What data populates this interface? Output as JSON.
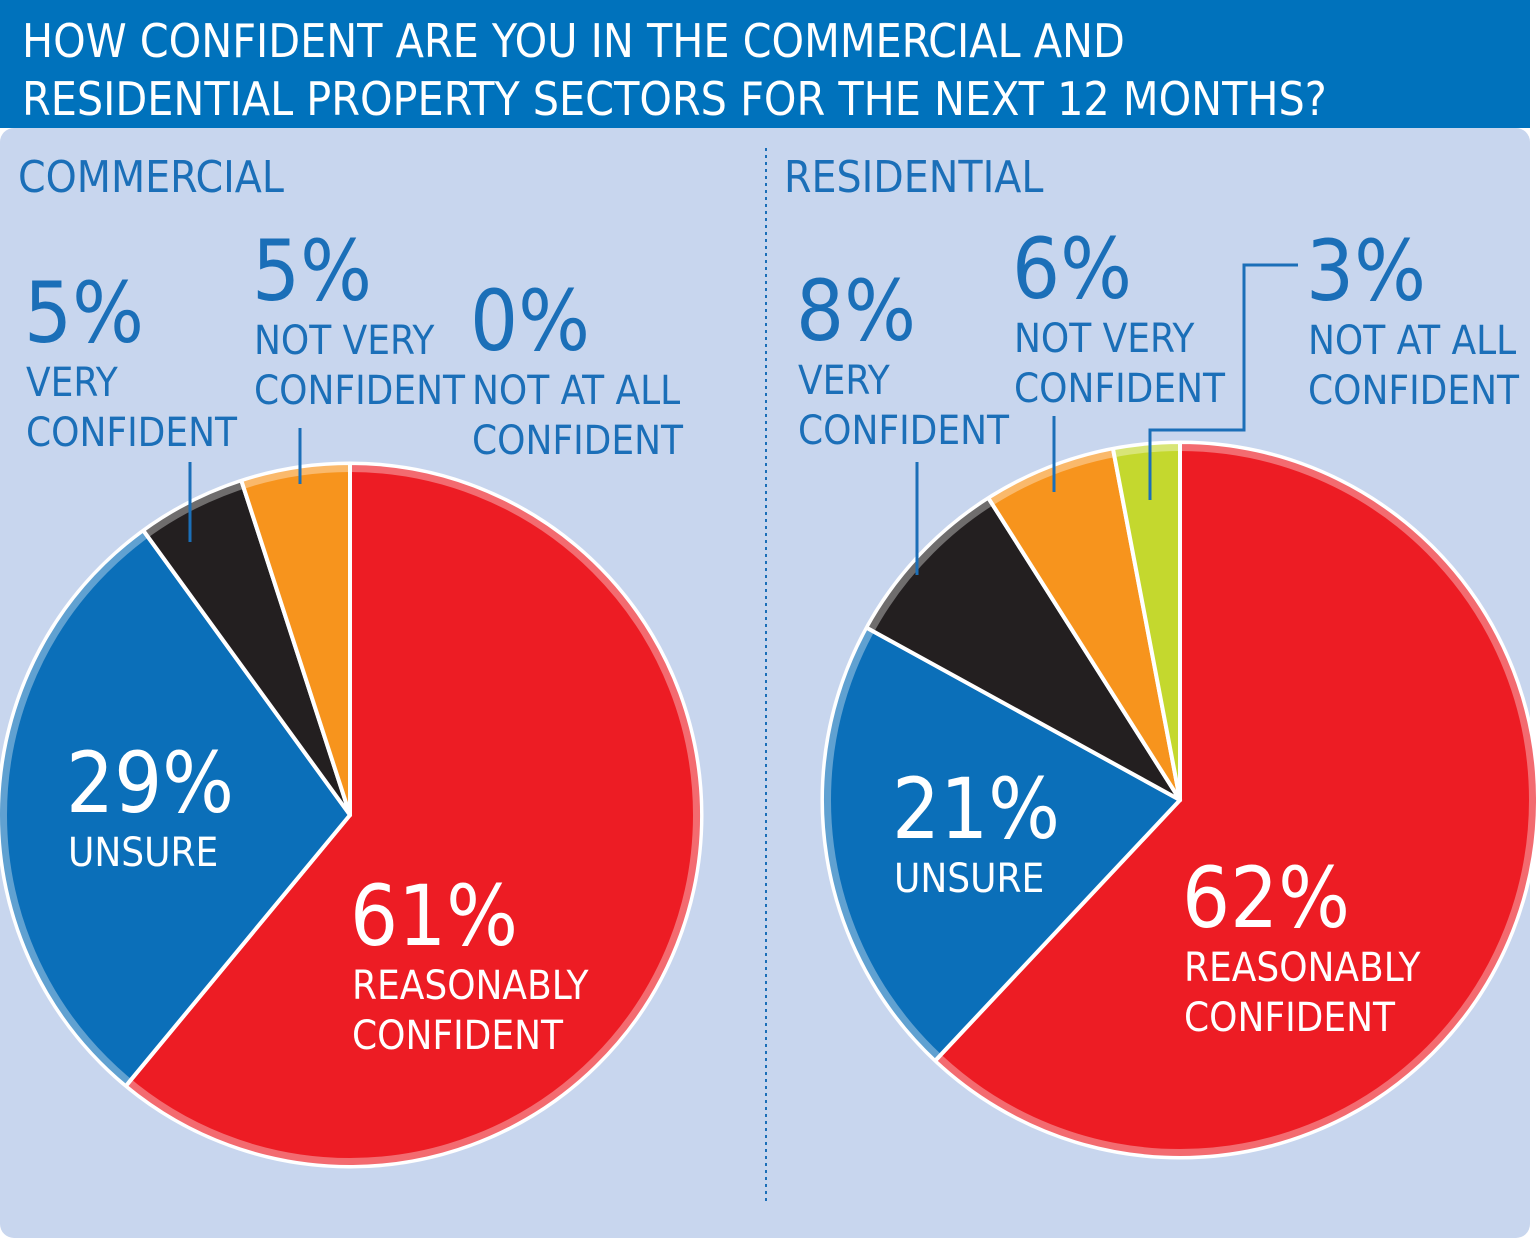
{
  "title_lines": [
    "HOW CONFIDENT ARE YOU IN THE COMMERCIAL AND",
    "RESIDENTIAL PROPERTY SECTORS FOR THE NEXT 12 MONTHS?"
  ],
  "colors": {
    "header_bg": "#0072bc",
    "panel_bg": "#c8d6ee",
    "text_blue": "#1b6fb8",
    "reasonably_confident": "#ed1c24",
    "unsure": "#0b6fb9",
    "very_confident": "#231f20",
    "not_very_confident": "#f7941d",
    "not_at_all_confident": "#c4d82e"
  },
  "chart_data": [
    {
      "type": "pie",
      "title": "COMMERCIAL",
      "slices": [
        {
          "key": "reasonably",
          "value_label": "61%",
          "label_lines": [
            "REASONABLY",
            "CONFIDENT"
          ],
          "value": 61,
          "color": "#ed1c24"
        },
        {
          "key": "unsure",
          "value_label": "29%",
          "label_lines": [
            "UNSURE"
          ],
          "value": 29,
          "color": "#0b6fb9"
        },
        {
          "key": "very",
          "value_label": "5%",
          "label_lines": [
            "VERY",
            "CONFIDENT"
          ],
          "value": 5,
          "color": "#231f20"
        },
        {
          "key": "notvery",
          "value_label": "5%",
          "label_lines": [
            "NOT VERY",
            "CONFIDENT"
          ],
          "value": 5,
          "color": "#f7941d"
        },
        {
          "key": "notatall",
          "value_label": "0%",
          "label_lines": [
            "NOT AT ALL",
            "CONFIDENT"
          ],
          "value": 0,
          "color": "#c4d82e"
        }
      ]
    },
    {
      "type": "pie",
      "title": "RESIDENTIAL",
      "slices": [
        {
          "key": "reasonably",
          "value_label": "62%",
          "label_lines": [
            "REASONABLY",
            "CONFIDENT"
          ],
          "value": 62,
          "color": "#ed1c24"
        },
        {
          "key": "unsure",
          "value_label": "21%",
          "label_lines": [
            "UNSURE"
          ],
          "value": 21,
          "color": "#0b6fb9"
        },
        {
          "key": "very",
          "value_label": "8%",
          "label_lines": [
            "VERY",
            "CONFIDENT"
          ],
          "value": 8,
          "color": "#231f20"
        },
        {
          "key": "notvery",
          "value_label": "6%",
          "label_lines": [
            "NOT VERY",
            "CONFIDENT"
          ],
          "value": 6,
          "color": "#f7941d"
        },
        {
          "key": "notatall",
          "value_label": "3%",
          "label_lines": [
            "NOT AT ALL",
            "CONFIDENT"
          ],
          "value": 3,
          "color": "#c4d82e"
        }
      ]
    }
  ]
}
